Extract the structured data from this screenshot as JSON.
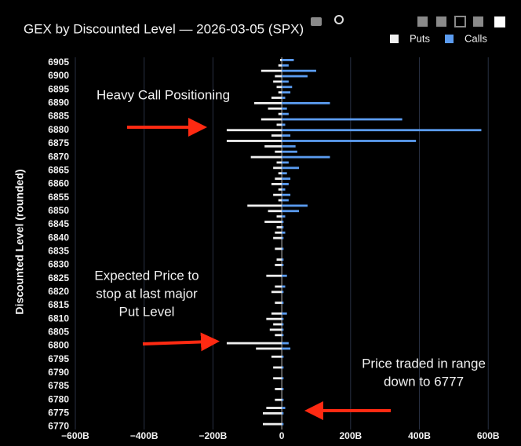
{
  "chart_data": {
    "type": "hbar",
    "title": "GEX by Discounted Level — 2026-03-05 (SPX)",
    "y_label": "Discounted Level (rounded)",
    "y": [
      6906,
      6904,
      6902,
      6900,
      6898,
      6896,
      6894,
      6892,
      6890,
      6888,
      6886,
      6884,
      6882,
      6880,
      6878,
      6876,
      6874,
      6872,
      6870,
      6868,
      6866,
      6864,
      6862,
      6860,
      6858,
      6856,
      6854,
      6852,
      6850,
      6848,
      6846,
      6844,
      6842,
      6840,
      6836,
      6832,
      6830,
      6826,
      6822,
      6820,
      6816,
      6812,
      6810,
      6808,
      6806,
      6804,
      6801,
      6799,
      6796,
      6792,
      6788,
      6784,
      6780,
      6777,
      6775,
      6771
    ],
    "series": [
      {
        "name": "Puts",
        "color": "#f0f0f0",
        "values": [
          -5,
          -10,
          -60,
          -20,
          -25,
          -15,
          -10,
          -30,
          -80,
          -40,
          -10,
          -60,
          -15,
          -160,
          -30,
          -160,
          -50,
          -20,
          -90,
          -15,
          -25,
          -10,
          -20,
          -30,
          -10,
          -25,
          -10,
          -100,
          -40,
          -15,
          -50,
          -15,
          -20,
          -25,
          -20,
          -15,
          -20,
          -45,
          -20,
          -30,
          -20,
          -30,
          -45,
          -25,
          -35,
          -20,
          -160,
          -75,
          -30,
          -25,
          -25,
          -20,
          -20,
          -45,
          -55,
          -55
        ]
      },
      {
        "name": "Calls",
        "color": "#5b9cf0",
        "values": [
          35,
          20,
          100,
          75,
          20,
          30,
          25,
          10,
          140,
          15,
          20,
          350,
          10,
          580,
          25,
          390,
          40,
          45,
          140,
          20,
          50,
          15,
          25,
          20,
          10,
          25,
          20,
          75,
          50,
          10,
          5,
          5,
          10,
          5,
          5,
          5,
          5,
          15,
          10,
          5,
          5,
          15,
          5,
          5,
          5,
          5,
          20,
          25,
          5,
          5,
          5,
          5,
          5,
          10,
          5,
          5
        ]
      }
    ],
    "xlim": [
      -600,
      620
    ],
    "ylim": [
      6769,
      6907
    ],
    "xticks": [
      {
        "value": -600,
        "label": "−600B"
      },
      {
        "value": -400,
        "label": "−400B"
      },
      {
        "value": -200,
        "label": "−200B"
      },
      0,
      {
        "value": 200,
        "label": "200B"
      },
      {
        "value": 400,
        "label": "400B"
      },
      {
        "value": 600,
        "label": "600B"
      }
    ],
    "yticks": [
      6770,
      6775,
      6780,
      6785,
      6790,
      6795,
      6800,
      6805,
      6810,
      6815,
      6820,
      6825,
      6830,
      6835,
      6840,
      6845,
      6850,
      6855,
      6860,
      6865,
      6870,
      6875,
      6880,
      6885,
      6890,
      6895,
      6900,
      6905
    ],
    "grid": true,
    "legend": "top-right",
    "annotations": [
      [
        "Heavy Call Positioning"
      ],
      [
        "Expected Price to",
        "stop at last major",
        "Put Level"
      ],
      [
        "Price traded in range",
        "down to 6777"
      ]
    ]
  }
}
